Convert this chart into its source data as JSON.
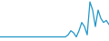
{
  "x": [
    0,
    1,
    2,
    3,
    4,
    5,
    6,
    7,
    8,
    9,
    10,
    11,
    12,
    13,
    14,
    15,
    16,
    17,
    18,
    19,
    20,
    21,
    22,
    23,
    24,
    25,
    26,
    27,
    28,
    29,
    30,
    31,
    32,
    33,
    34,
    35,
    36,
    37,
    38,
    39,
    40
  ],
  "y": [
    1,
    1,
    1,
    1,
    1,
    1,
    1,
    1,
    1,
    1,
    1,
    1,
    1,
    1,
    1,
    1,
    1,
    1,
    1,
    1,
    1,
    1,
    1,
    1,
    1,
    2,
    4,
    3,
    1,
    4,
    8,
    6,
    2,
    18,
    14,
    6,
    14,
    10,
    8,
    9,
    7
  ],
  "line_color": "#2196c8",
  "background_color": "#ffffff",
  "linewidth": 0.9
}
